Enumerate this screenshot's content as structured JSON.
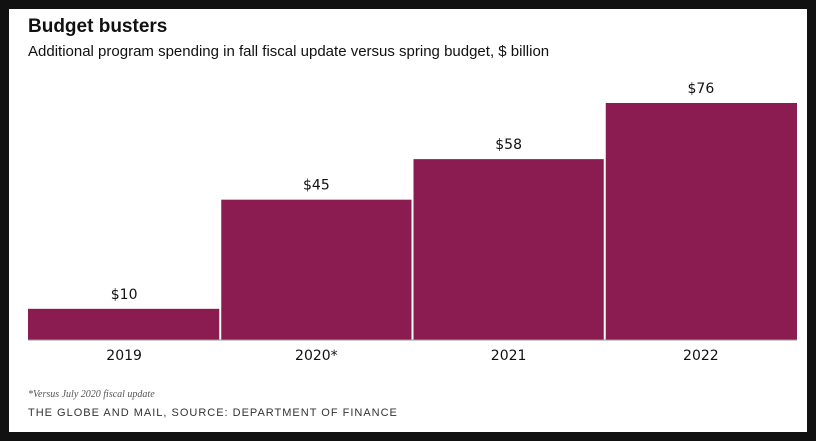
{
  "title": "Budget busters",
  "subtitle": "Additional program spending in fall fiscal update versus spring budget, $ billion",
  "footnote": "*Versus July 2020 fiscal update",
  "credit": "THE GLOBE AND MAIL, SOURCE: DEPARTMENT OF FINANCE",
  "colors": {
    "bar": "#8a1c52",
    "axis": "#999999"
  },
  "chart_data": {
    "type": "bar",
    "categories": [
      "2019",
      "2020*",
      "2021",
      "2022"
    ],
    "values": [
      10,
      45,
      58,
      76
    ],
    "value_labels": [
      "$10",
      "$45",
      "$58",
      "$76"
    ],
    "ylim": [
      0,
      76
    ],
    "grid": false,
    "legend": "none"
  }
}
